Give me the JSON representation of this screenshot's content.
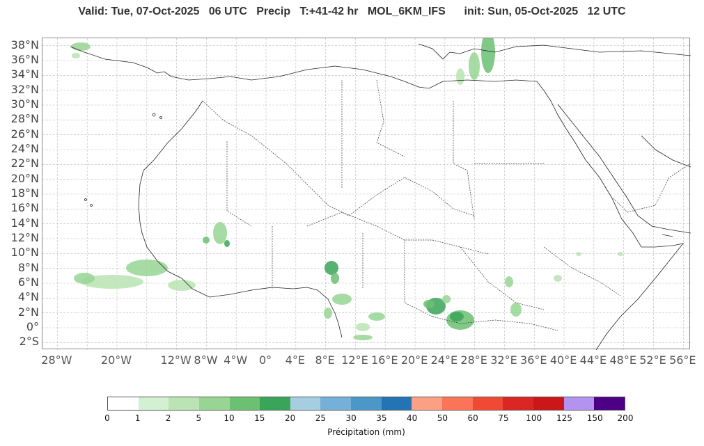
{
  "header": {
    "title": "Valid: Tue, 07-Oct-2025   06 UTC   Precip   T:+41-42 hr   MOL_6KM_IFS      init: Sun, 05-Oct-2025   12 UTC"
  },
  "map": {
    "lat_labels": [
      "38°N",
      "36°N",
      "34°N",
      "32°N",
      "30°N",
      "28°N",
      "26°N",
      "24°N",
      "22°N",
      "20°N",
      "18°N",
      "16°N",
      "14°N",
      "12°N",
      "10°N",
      "8°N",
      "6°N",
      "4°N",
      "2°N",
      "0°",
      "2°S"
    ],
    "lon_labels": [
      "28°W",
      "20°W",
      "12°W",
      "8°W",
      "4°W",
      "0°",
      "4°E",
      "8°E",
      "12°E",
      "16°E",
      "20°E",
      "24°E",
      "28°E",
      "32°E",
      "36°E",
      "40°E",
      "44°E",
      "48°E",
      "52°E",
      "56°E"
    ],
    "lon_min": -30,
    "lon_max": 57,
    "lat_min": -3.0,
    "lat_max": 39.0,
    "gridlines": true,
    "coastline_color": "#222222",
    "border_style": "dotted"
  },
  "colorbar": {
    "ticks": [
      "0",
      "1",
      "2",
      "5",
      "10",
      "15",
      "20",
      "25",
      "30",
      "35",
      "40",
      "50",
      "60",
      "75",
      "100",
      "125",
      "150",
      "200"
    ],
    "colors": [
      "#ffffff",
      "#d3f0d2",
      "#bae4b3",
      "#98d594",
      "#6bc072",
      "#3aa458",
      "#a6cee3",
      "#74b0d8",
      "#4b98c8",
      "#2373b5",
      "#fca083",
      "#fb7457",
      "#f14a34",
      "#dc2624",
      "#cc1719",
      "#b294f0",
      "#4d0085"
    ],
    "label": "Précipitation (mm)"
  }
}
